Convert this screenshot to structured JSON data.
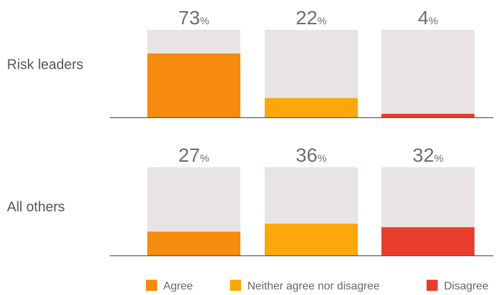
{
  "chart_data": {
    "type": "bar",
    "categories": [
      "Agree",
      "Neither agree nor disagree",
      "Disagree"
    ],
    "ylim": [
      0,
      100
    ],
    "unit": "%",
    "groups": [
      {
        "name": "Risk leaders",
        "values": [
          73,
          22,
          4
        ]
      },
      {
        "name": "All others",
        "values": [
          27,
          36,
          32
        ]
      }
    ],
    "legend": [
      {
        "label": "Agree",
        "color": "#f68b0d"
      },
      {
        "label": "Neither agree nor disagree",
        "color": "#fda70a"
      },
      {
        "label": "Disagree",
        "color": "#e93e2d"
      }
    ],
    "background_bar_color": "#e8e4e4",
    "baseline_color": "#555555"
  }
}
